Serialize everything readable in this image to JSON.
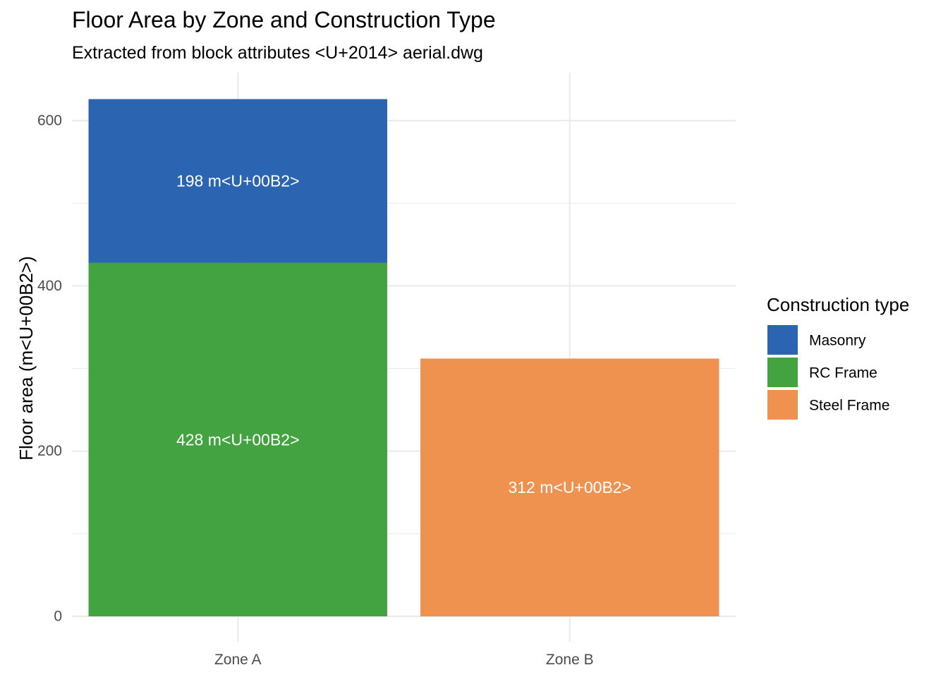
{
  "chart_data": {
    "type": "bar",
    "stacked": true,
    "title": "Floor Area by Zone and Construction Type",
    "subtitle": "Extracted from block attributes <U+2014> aerial.dwg",
    "xlabel": "",
    "ylabel": "Floor area (m<U+00B2>)",
    "categories": [
      "Zone A",
      "Zone B"
    ],
    "ylim": [
      0,
      650
    ],
    "yticks": [
      0,
      200,
      400,
      600
    ],
    "grid": true,
    "legend": {
      "title": "Construction type",
      "position": "right"
    },
    "series": [
      {
        "name": "RC Frame",
        "color": "#43A340",
        "values": [
          428,
          null
        ],
        "labels": [
          "428 m<U+00B2>",
          null
        ]
      },
      {
        "name": "Masonry",
        "color": "#2B65B1",
        "values": [
          198,
          null
        ],
        "labels": [
          "198 m<U+00B2>",
          null
        ]
      },
      {
        "name": "Steel Frame",
        "color": "#EF9250",
        "values": [
          null,
          312
        ],
        "labels": [
          null,
          "312 m<U+00B2>"
        ]
      }
    ],
    "legend_order": [
      "Masonry",
      "RC Frame",
      "Steel Frame"
    ]
  }
}
